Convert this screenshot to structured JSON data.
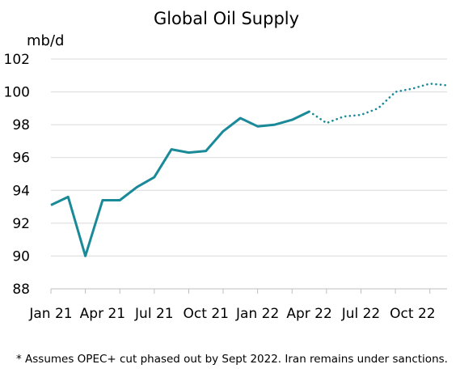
{
  "chart_data": {
    "type": "line",
    "title": "Global Oil Supply",
    "ylabel": "mb/d",
    "xlabel": "",
    "ylim": [
      88,
      102
    ],
    "yticks": [
      88,
      90,
      92,
      94,
      96,
      98,
      100,
      102
    ],
    "grid": true,
    "x": [
      "Jan 21",
      "Feb 21",
      "Mar 21",
      "Apr 21",
      "May 21",
      "Jun 21",
      "Jul 21",
      "Aug 21",
      "Sep 21",
      "Oct 21",
      "Nov 21",
      "Dec 21",
      "Jan 22",
      "Feb 22",
      "Mar 22",
      "Apr 22",
      "May 22",
      "Jun 22",
      "Jul 22",
      "Aug 22",
      "Sep 22",
      "Oct 22",
      "Nov 22",
      "Dec 22"
    ],
    "x_tick_labels": [
      "Jan 21",
      "Apr 21",
      "Jul 21",
      "Oct 21",
      "Jan 22",
      "Apr 22",
      "Jul 22",
      "Oct 22"
    ],
    "series": [
      {
        "style": "solid",
        "x": [
          "Jan 21",
          "Feb 21",
          "Mar 21",
          "Apr 21",
          "May 21",
          "Jun 21",
          "Jul 21",
          "Aug 21",
          "Sep 21",
          "Oct 21",
          "Nov 21",
          "Dec 21",
          "Jan 22",
          "Feb 22",
          "Mar 22",
          "Apr 22"
        ],
        "values": [
          93.1,
          93.6,
          90.0,
          93.4,
          93.4,
          94.2,
          94.8,
          96.5,
          96.3,
          96.4,
          97.6,
          98.4,
          97.9,
          98.0,
          98.3,
          98.8
        ]
      },
      {
        "style": "dotted",
        "x": [
          "Apr 22",
          "May 22",
          "Jun 22",
          "Jul 22",
          "Aug 22",
          "Sep 22",
          "Oct 22",
          "Nov 22",
          "Dec 22"
        ],
        "values": [
          98.8,
          98.1,
          98.5,
          98.6,
          99.0,
          100.0,
          100.2,
          100.5,
          100.4
        ]
      }
    ],
    "colors": {
      "line": "#1a8a99",
      "grid": "#d9d9d9",
      "axis": "#bfbfbf"
    }
  },
  "footnote": "* Assumes OPEC+ cut phased out by Sept 2022. Iran remains under sanctions."
}
